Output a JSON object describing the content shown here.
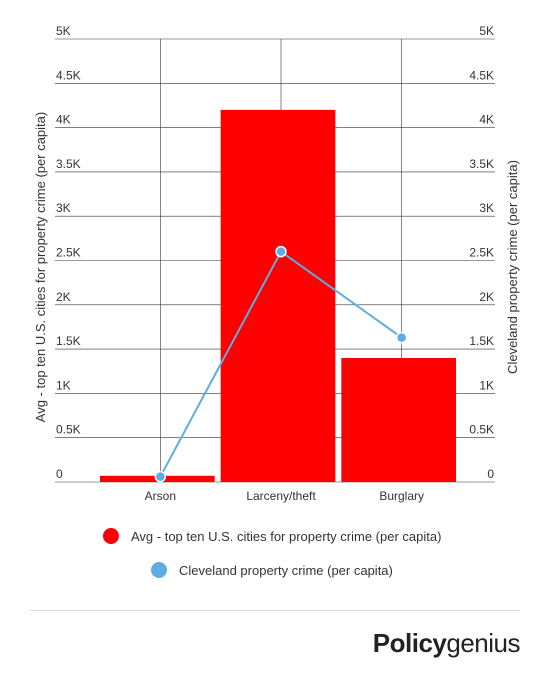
{
  "chart_data": {
    "type": "bar",
    "categories": [
      "Arson",
      "Larceny/theft",
      "Burglary"
    ],
    "series": [
      {
        "name": "Avg - top ten U.S. cities for property crime (per capita)",
        "kind": "bar",
        "axis": "left",
        "color": "#ff0000",
        "values": [
          70,
          4200,
          1400
        ]
      },
      {
        "name": "Cleveland property crime (per capita)",
        "kind": "line",
        "axis": "right",
        "color": "#5dade2",
        "values": [
          60,
          2600,
          1630
        ]
      }
    ],
    "ylabel": "Avg - top ten U.S. cities for property crime (per capita)",
    "y2label": "Cleveland property crime (per capita)",
    "ylim": [
      0,
      5000
    ],
    "y2lim": [
      0,
      5000
    ],
    "yticks": [
      "0",
      "0.5K",
      "1K",
      "1.5K",
      "2K",
      "2.5K",
      "3K",
      "3.5K",
      "4K",
      "4.5K",
      "5K"
    ],
    "grid": true,
    "legend": "bottom"
  },
  "legend": {
    "item1": "Avg - top ten U.S. cities for property crime (per capita)",
    "item2": "Cleveland property crime (per capita)",
    "color1": "#ff0000",
    "color2": "#5dade2"
  },
  "brand": {
    "bold": "Policy",
    "light": "genius"
  }
}
